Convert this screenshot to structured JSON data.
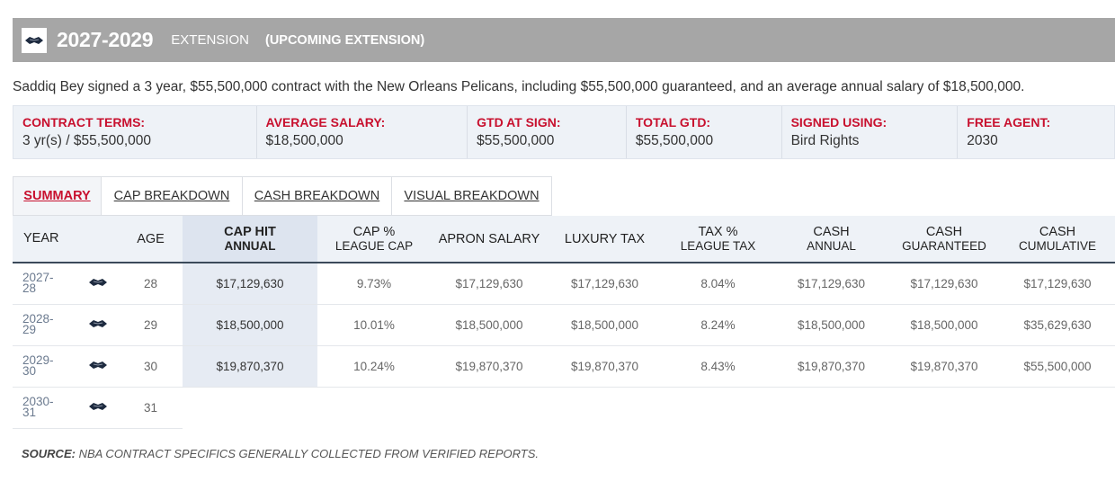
{
  "header": {
    "years": "2027-2029",
    "type": "EXTENSION",
    "status": "(UPCOMING EXTENSION)",
    "logo_icon": "pelicans-logo-icon"
  },
  "summary": "Saddiq Bey signed a 3 year, $55,500,000 contract with the New Orleans Pelicans, including $55,500,000 guaranteed, and an average annual salary of $18,500,000.",
  "terms": [
    {
      "label": "CONTRACT TERMS:",
      "value": "3 yr(s) / $55,500,000"
    },
    {
      "label": "AVERAGE SALARY:",
      "value": "$18,500,000"
    },
    {
      "label": "GTD AT SIGN:",
      "value": "$55,500,000"
    },
    {
      "label": "TOTAL GTD:",
      "value": "$55,500,000"
    },
    {
      "label": "SIGNED USING:",
      "value": "Bird Rights"
    },
    {
      "label": "FREE AGENT:",
      "value": "2030"
    }
  ],
  "tabs": [
    {
      "label": "SUMMARY",
      "active": true
    },
    {
      "label": "CAP BREAKDOWN",
      "active": false
    },
    {
      "label": "CASH BREAKDOWN",
      "active": false
    },
    {
      "label": "VISUAL BREAKDOWN",
      "active": false
    }
  ],
  "table": {
    "headers": {
      "year": "YEAR",
      "age": "AGE",
      "cap_hit_top": "CAP HIT",
      "cap_hit_bottom": "ANNUAL",
      "cap_pct_top": "CAP %",
      "cap_pct_bottom": "LEAGUE CAP",
      "apron": "APRON SALARY",
      "luxury": "LUXURY TAX",
      "tax_pct_top": "TAX %",
      "tax_pct_bottom": "LEAGUE TAX",
      "cash_annual_top": "CASH",
      "cash_annual_bottom": "ANNUAL",
      "cash_gtd_top": "CASH",
      "cash_gtd_bottom": "GUARANTEED",
      "cash_cum_top": "CASH",
      "cash_cum_bottom": "CUMULATIVE"
    },
    "rows": [
      {
        "year_a": "2027-",
        "year_b": "28",
        "age": "28",
        "cap_hit": "$17,129,630",
        "cap_pct": "9.73%",
        "apron": "$17,129,630",
        "luxury": "$17,129,630",
        "tax_pct": "8.04%",
        "cash_annual": "$17,129,630",
        "cash_gtd": "$17,129,630",
        "cash_cum": "$17,129,630"
      },
      {
        "year_a": "2028-",
        "year_b": "29",
        "age": "29",
        "cap_hit": "$18,500,000",
        "cap_pct": "10.01%",
        "apron": "$18,500,000",
        "luxury": "$18,500,000",
        "tax_pct": "8.24%",
        "cash_annual": "$18,500,000",
        "cash_gtd": "$18,500,000",
        "cash_cum": "$35,629,630"
      },
      {
        "year_a": "2029-",
        "year_b": "30",
        "age": "30",
        "cap_hit": "$19,870,370",
        "cap_pct": "10.24%",
        "apron": "$19,870,370",
        "luxury": "$19,870,370",
        "tax_pct": "8.43%",
        "cash_annual": "$19,870,370",
        "cash_gtd": "$19,870,370",
        "cash_cum": "$55,500,000"
      },
      {
        "year_a": "2030-",
        "year_b": "31",
        "age": "31"
      }
    ]
  },
  "source_label": "SOURCE:",
  "source_text": " NBA CONTRACT SPECIFICS GENERALLY COLLECTED FROM VERIFIED REPORTS.",
  "colors": {
    "accent": "#c8102e",
    "header_bg": "#a6a6a6",
    "terms_bg": "#eef2f7"
  }
}
